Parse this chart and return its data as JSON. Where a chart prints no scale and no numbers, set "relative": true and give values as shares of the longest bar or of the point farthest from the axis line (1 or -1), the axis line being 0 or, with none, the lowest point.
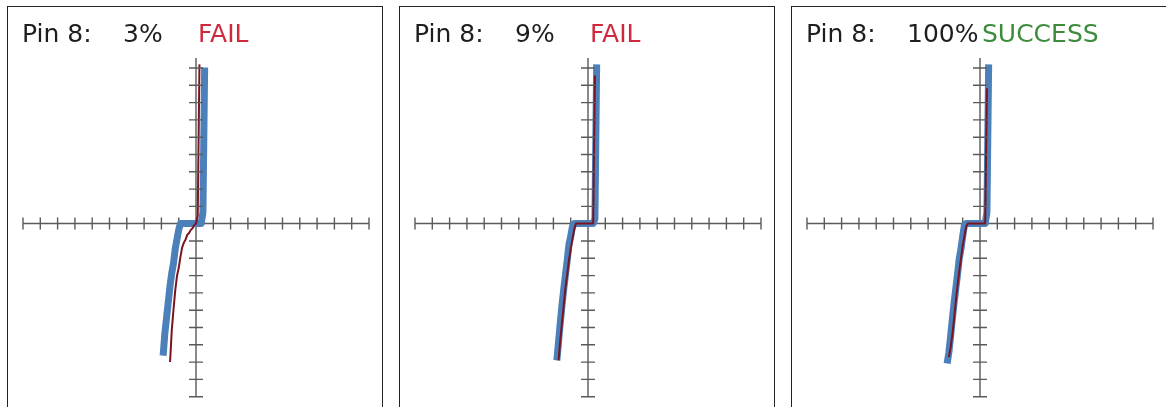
{
  "chart_data": [
    {
      "type": "line",
      "title": "Pin 8:",
      "subtitle": "3%",
      "annotations": [
        "FAIL"
      ],
      "relative": true,
      "categories": [
        null,
        null,
        null,
        null,
        null,
        null,
        null,
        null,
        null,
        null,
        null,
        null,
        null,
        null,
        null,
        null,
        null,
        null,
        null,
        null,
        null,
        null,
        null,
        null,
        null,
        null,
        null,
        null,
        null,
        null,
        null,
        null,
        null,
        null,
        null,
        null,
        null,
        null,
        null,
        null,
        null,
        null,
        null,
        null,
        null,
        null,
        null,
        null,
        null,
        null,
        null,
        null,
        null,
        null,
        null,
        null,
        null,
        null,
        null,
        null,
        null,
        null,
        null,
        null,
        null,
        null,
        null,
        null,
        null,
        null,
        null,
        null,
        null,
        null,
        null,
        null,
        null,
        null,
        null,
        null,
        null,
        null,
        null,
        null,
        null,
        null,
        null,
        null,
        null,
        null,
        null,
        null,
        null,
        null,
        null,
        null,
        null,
        null,
        null,
        null,
        null,
        null,
        null,
        null,
        null,
        null,
        null,
        null,
        null,
        null,
        null,
        null,
        null,
        null,
        null,
        null,
        null,
        null,
        null,
        null,
        null,
        null,
        null,
        null,
        null,
        null,
        null,
        null,
        null,
        null,
        null,
        null,
        null,
        null,
        null,
        null,
        null,
        null,
        null,
        null,
        null,
        null,
        null,
        null,
        null,
        null,
        null,
        null,
        null,
        null,
        null,
        null,
        null,
        null,
        null,
        null,
        null,
        null,
        null,
        null,
        null,
        null,
        null,
        null,
        null,
        null,
        null,
        null,
        null,
        null,
        null,
        null,
        null,
        null,
        null,
        null,
        null,
        null,
        null,
        null,
        null,
        null,
        null,
        null,
        null,
        null,
        null,
        null,
        null,
        null,
        null,
        null,
        null,
        null,
        null,
        null,
        null,
        null,
        null,
        null,
        null
      ],
      "series": [
        {
          "color": "#4c80ba",
          "values": [
            null,
            null,
            null,
            null,
            null,
            null,
            null,
            null,
            null,
            null,
            null,
            null,
            null,
            null,
            null,
            null,
            null,
            null,
            null,
            null,
            null,
            null,
            null,
            null,
            null,
            null,
            null,
            null,
            null,
            null,
            null,
            null,
            null,
            null,
            null,
            null,
            null,
            null,
            null,
            null,
            null,
            null,
            null,
            null,
            null,
            null,
            null,
            null,
            null,
            null,
            null,
            null,
            null,
            null,
            null,
            null,
            null,
            null,
            null,
            null,
            null,
            null,
            null,
            null,
            null,
            null,
            null,
            null,
            null,
            null,
            null,
            null,
            null,
            null,
            null,
            null,
            null,
            null,
            null,
            null,
            null,
            -0.83,
            -0.69,
            -0.59,
            -0.49,
            -0.39,
            -0.31,
            -0.25,
            -0.16,
            -0.1,
            -0.04,
            0,
            0,
            0,
            0,
            0,
            0,
            0,
            0,
            0,
            0,
            0,
            0,
            0,
            0.07,
            0.98,
            null,
            null,
            null,
            null,
            null,
            null,
            null,
            null,
            null,
            null,
            null,
            null,
            null,
            null,
            null,
            null,
            null,
            null,
            null,
            null,
            null,
            null,
            null,
            null,
            null,
            null,
            null,
            null,
            null,
            null,
            null,
            null,
            null,
            null,
            null,
            null,
            null,
            null,
            null,
            null,
            null,
            null,
            null,
            null,
            null,
            null,
            null,
            null,
            null,
            null,
            null,
            null,
            null,
            null,
            null,
            null,
            null,
            null,
            null,
            null,
            null,
            null,
            null,
            null,
            null,
            null,
            null,
            null,
            null,
            null,
            null,
            null,
            null,
            null,
            null,
            null,
            null,
            null,
            null,
            null,
            null,
            null,
            null,
            null,
            null,
            null,
            null,
            null,
            null,
            null,
            null,
            null,
            null,
            null,
            null
          ]
        },
        {
          "color": "#7a1420",
          "values": [
            null,
            null,
            null,
            null,
            null,
            null,
            null,
            null,
            null,
            null,
            null,
            null,
            null,
            null,
            null,
            null,
            null,
            null,
            null,
            null,
            null,
            null,
            null,
            null,
            null,
            null,
            null,
            null,
            null,
            null,
            null,
            null,
            null,
            null,
            null,
            null,
            null,
            null,
            null,
            null,
            null,
            null,
            null,
            null,
            null,
            null,
            null,
            null,
            null,
            null,
            null,
            null,
            null,
            null,
            null,
            null,
            null,
            null,
            null,
            null,
            null,
            null,
            null,
            null,
            null,
            null,
            null,
            null,
            null,
            null,
            null,
            null,
            null,
            null,
            null,
            null,
            null,
            null,
            null,
            null,
            null,
            null,
            null,
            null,
            null,
            -0.87,
            -0.67,
            -0.54,
            -0.42,
            -0.33,
            -0.28,
            -0.21,
            -0.15,
            -0.12,
            -0.1,
            -0.07,
            -0.06,
            -0.04,
            -0.03,
            -0.01,
            0,
            0.05,
            1,
            null,
            null,
            null,
            null,
            null,
            null,
            null,
            null,
            null,
            null,
            null,
            null,
            null,
            null,
            null,
            null,
            null,
            null,
            null,
            null,
            null,
            null,
            null,
            null,
            null,
            null,
            null,
            null,
            null,
            null,
            null,
            null,
            null,
            null,
            null,
            null,
            null,
            null,
            null,
            null,
            null,
            null,
            null,
            null,
            null,
            null,
            null,
            null,
            null,
            null,
            null,
            null,
            null,
            null,
            null,
            null,
            null,
            null,
            null,
            null,
            null,
            null,
            null,
            null,
            null,
            null,
            null,
            null,
            null,
            null,
            null,
            null,
            null,
            null,
            null,
            null,
            null,
            null,
            null,
            null,
            null,
            null,
            null,
            null,
            null,
            null,
            null,
            null,
            null,
            null,
            null,
            null,
            null,
            null,
            null,
            null,
            null,
            null
          ]
        }
      ]
    },
    {
      "type": "line",
      "title": "Pin 8:",
      "subtitle": "9%",
      "annotations": [
        "FAIL"
      ],
      "relative": true,
      "categories": [
        null,
        null,
        null,
        null,
        null,
        null,
        null,
        null,
        null,
        null,
        null,
        null,
        null,
        null,
        null,
        null,
        null,
        null,
        null,
        null,
        null,
        null,
        null,
        null,
        null,
        null,
        null,
        null,
        null,
        null,
        null,
        null,
        null,
        null,
        null,
        null,
        null,
        null,
        null,
        null,
        null,
        null,
        null,
        null,
        null,
        null,
        null,
        null,
        null,
        null,
        null,
        null,
        null,
        null,
        null,
        null,
        null,
        null,
        null,
        null,
        null,
        null,
        null,
        null,
        null,
        null,
        null,
        null,
        null,
        null,
        null,
        null,
        null,
        null,
        null,
        null,
        null,
        null,
        null,
        null,
        null,
        null,
        null,
        null,
        null,
        null,
        null,
        null,
        null,
        null,
        null,
        null,
        null,
        null,
        null,
        null,
        null,
        null,
        null,
        null,
        null,
        null,
        null,
        null,
        null,
        null,
        null,
        null,
        null,
        null,
        null,
        null,
        null,
        null,
        null,
        null,
        null,
        null,
        null,
        null,
        null,
        null,
        null,
        null,
        null,
        null,
        null,
        null,
        null,
        null,
        null,
        null,
        null,
        null,
        null,
        null,
        null,
        null,
        null,
        null,
        null,
        null,
        null,
        null,
        null,
        null,
        null,
        null,
        null,
        null,
        null,
        null,
        null,
        null,
        null,
        null,
        null,
        null,
        null,
        null,
        null,
        null,
        null,
        null,
        null,
        null,
        null,
        null,
        null,
        null,
        null,
        null,
        null,
        null,
        null,
        null,
        null,
        null,
        null,
        null,
        null,
        null,
        null,
        null,
        null,
        null,
        null,
        null,
        null,
        null,
        null,
        null,
        null,
        null,
        null,
        null,
        null,
        null,
        null,
        null,
        null
      ],
      "series": [
        {
          "color": "#4c80ba",
          "values": [
            null,
            null,
            null,
            null,
            null,
            null,
            null,
            null,
            null,
            null,
            null,
            null,
            null,
            null,
            null,
            null,
            null,
            null,
            null,
            null,
            null,
            null,
            null,
            null,
            null,
            null,
            null,
            null,
            null,
            null,
            null,
            null,
            null,
            null,
            null,
            null,
            null,
            null,
            null,
            null,
            null,
            null,
            null,
            null,
            null,
            null,
            null,
            null,
            null,
            null,
            null,
            null,
            null,
            null,
            null,
            null,
            null,
            null,
            null,
            null,
            null,
            null,
            null,
            null,
            null,
            null,
            null,
            null,
            null,
            null,
            null,
            null,
            null,
            null,
            null,
            null,
            null,
            null,
            null,
            null,
            null,
            null,
            -0.86,
            -0.74,
            -0.62,
            -0.51,
            -0.41,
            -0.32,
            -0.23,
            -0.13,
            -0.08,
            -0.02,
            0,
            0,
            0,
            0,
            0,
            0,
            0,
            0,
            0,
            0,
            0,
            0,
            0.03,
            1,
            null,
            null,
            null,
            null,
            null,
            null,
            null,
            null,
            null,
            null,
            null,
            null,
            null,
            null,
            null,
            null,
            null,
            null,
            null,
            null,
            null,
            null,
            null,
            null,
            null,
            null,
            null,
            null,
            null,
            null,
            null,
            null,
            null,
            null,
            null,
            null,
            null,
            null,
            null,
            null,
            null,
            null,
            null,
            null,
            null,
            null,
            null,
            null,
            null,
            null,
            null,
            null,
            null,
            null,
            null,
            null,
            null,
            null,
            null,
            null,
            null,
            null,
            null,
            null,
            null,
            null,
            null,
            null,
            null,
            null,
            null,
            null,
            null,
            null,
            null,
            null,
            null,
            null,
            null,
            null,
            null,
            null,
            null,
            null,
            null,
            null,
            null,
            null,
            null,
            null,
            null,
            null,
            null,
            null,
            null
          ]
        },
        {
          "color": "#7a1420",
          "values": [
            null,
            null,
            null,
            null,
            null,
            null,
            null,
            null,
            null,
            null,
            null,
            null,
            null,
            null,
            null,
            null,
            null,
            null,
            null,
            null,
            null,
            null,
            null,
            null,
            null,
            null,
            null,
            null,
            null,
            null,
            null,
            null,
            null,
            null,
            null,
            null,
            null,
            null,
            null,
            null,
            null,
            null,
            null,
            null,
            null,
            null,
            null,
            null,
            null,
            null,
            null,
            null,
            null,
            null,
            null,
            null,
            null,
            null,
            null,
            null,
            null,
            null,
            null,
            null,
            null,
            null,
            null,
            null,
            null,
            null,
            null,
            null,
            null,
            null,
            null,
            null,
            null,
            null,
            null,
            null,
            null,
            null,
            null,
            -0.86,
            -0.73,
            -0.62,
            -0.51,
            -0.4,
            -0.32,
            -0.23,
            -0.16,
            -0.1,
            -0.04,
            0,
            0,
            0,
            0,
            0,
            0,
            0,
            0,
            0,
            0,
            0,
            0.93,
            null,
            null,
            null,
            null,
            null,
            null,
            null,
            null,
            null,
            null,
            null,
            null,
            null,
            null,
            null,
            null,
            null,
            null,
            null,
            null,
            null,
            null,
            null,
            null,
            null,
            null,
            null,
            null,
            null,
            null,
            null,
            null,
            null,
            null,
            null,
            null,
            null,
            null,
            null,
            null,
            null,
            null,
            null,
            null,
            null,
            null,
            null,
            null,
            null,
            null,
            null,
            null,
            null,
            null,
            null,
            null,
            null,
            null,
            null,
            null,
            null,
            null,
            null,
            null,
            null,
            null,
            null,
            null,
            null,
            null,
            null,
            null,
            null,
            null,
            null,
            null,
            null,
            null,
            null,
            null,
            null,
            null,
            null,
            null,
            null,
            null,
            null,
            null,
            null,
            null,
            null,
            null,
            null,
            null,
            null,
            null
          ]
        }
      ]
    },
    {
      "type": "line",
      "title": "Pin 8:",
      "subtitle": "100%",
      "annotations": [
        "SUCCESS"
      ],
      "relative": true,
      "categories": [
        null,
        null,
        null,
        null,
        null,
        null,
        null,
        null,
        null,
        null,
        null,
        null,
        null,
        null,
        null,
        null,
        null,
        null,
        null,
        null,
        null,
        null,
        null,
        null,
        null,
        null,
        null,
        null,
        null,
        null,
        null,
        null,
        null,
        null,
        null,
        null,
        null,
        null,
        null,
        null,
        null,
        null,
        null,
        null,
        null,
        null,
        null,
        null,
        null,
        null,
        null,
        null,
        null,
        null,
        null,
        null,
        null,
        null,
        null,
        null,
        null,
        null,
        null,
        null,
        null,
        null,
        null,
        null,
        null,
        null,
        null,
        null,
        null,
        null,
        null,
        null,
        null,
        null,
        null,
        null,
        null,
        null,
        null,
        null,
        null,
        null,
        null,
        null,
        null,
        null,
        null,
        null,
        null,
        null,
        null,
        null,
        null,
        null,
        null,
        null,
        null,
        null,
        null,
        null,
        null,
        null,
        null,
        null,
        null,
        null,
        null,
        null,
        null,
        null,
        null,
        null,
        null,
        null,
        null,
        null,
        null,
        null,
        null,
        null,
        null,
        null,
        null,
        null,
        null,
        null,
        null,
        null,
        null,
        null,
        null,
        null,
        null,
        null,
        null,
        null,
        null,
        null,
        null,
        null,
        null,
        null,
        null,
        null,
        null,
        null,
        null,
        null,
        null,
        null,
        null,
        null,
        null,
        null,
        null,
        null,
        null,
        null,
        null,
        null,
        null,
        null,
        null,
        null,
        null,
        null,
        null,
        null,
        null,
        null,
        null,
        null,
        null,
        null,
        null,
        null,
        null,
        null,
        null,
        null,
        null,
        null,
        null,
        null,
        null,
        null,
        null,
        null,
        null,
        null,
        null,
        null,
        null,
        null,
        null,
        null,
        null
      ],
      "series": [
        {
          "color": "#4c80ba",
          "values": [
            null,
            null,
            null,
            null,
            null,
            null,
            null,
            null,
            null,
            null,
            null,
            null,
            null,
            null,
            null,
            null,
            null,
            null,
            null,
            null,
            null,
            null,
            null,
            null,
            null,
            null,
            null,
            null,
            null,
            null,
            null,
            null,
            null,
            null,
            null,
            null,
            null,
            null,
            null,
            null,
            null,
            null,
            null,
            null,
            null,
            null,
            null,
            null,
            null,
            null,
            null,
            null,
            null,
            null,
            null,
            null,
            null,
            null,
            null,
            null,
            null,
            null,
            null,
            null,
            null,
            null,
            null,
            null,
            null,
            null,
            null,
            null,
            null,
            null,
            null,
            null,
            null,
            null,
            null,
            null,
            null,
            -0.88,
            -0.81,
            -0.71,
            -0.6,
            -0.5,
            -0.41,
            -0.32,
            -0.22,
            -0.16,
            -0.08,
            -0.01,
            0,
            0,
            0,
            0,
            0,
            0,
            0,
            0,
            0,
            0,
            0,
            0,
            0.07,
            1,
            null,
            null,
            null,
            null,
            null,
            null,
            null,
            null,
            null,
            null,
            null,
            null,
            null,
            null,
            null,
            null,
            null,
            null,
            null,
            null,
            null,
            null,
            null,
            null,
            null,
            null,
            null,
            null,
            null,
            null,
            null,
            null,
            null,
            null,
            null,
            null,
            null,
            null,
            null,
            null,
            null,
            null,
            null,
            null,
            null,
            null,
            null,
            null,
            null,
            null,
            null,
            null,
            null,
            null,
            null,
            null,
            null,
            null,
            null,
            null,
            null,
            null,
            null,
            null,
            null,
            null,
            null,
            null,
            null,
            null,
            null,
            null,
            null,
            null,
            null,
            null,
            null,
            null,
            null,
            null,
            null,
            null,
            null,
            null,
            null,
            null,
            null,
            null,
            null,
            null,
            null,
            null,
            null,
            null,
            null
          ]
        },
        {
          "color": "#7a1420",
          "values": [
            null,
            null,
            null,
            null,
            null,
            null,
            null,
            null,
            null,
            null,
            null,
            null,
            null,
            null,
            null,
            null,
            null,
            null,
            null,
            null,
            null,
            null,
            null,
            null,
            null,
            null,
            null,
            null,
            null,
            null,
            null,
            null,
            null,
            null,
            null,
            null,
            null,
            null,
            null,
            null,
            null,
            null,
            null,
            null,
            null,
            null,
            null,
            null,
            null,
            null,
            null,
            null,
            null,
            null,
            null,
            null,
            null,
            null,
            null,
            null,
            null,
            null,
            null,
            null,
            null,
            null,
            null,
            null,
            null,
            null,
            null,
            null,
            null,
            null,
            null,
            null,
            null,
            null,
            null,
            null,
            null,
            null,
            -0.84,
            -0.78,
            -0.7,
            -0.6,
            -0.49,
            -0.39,
            -0.3,
            -0.22,
            -0.14,
            -0.08,
            -0.02,
            0,
            0,
            0,
            0,
            0,
            0,
            0,
            0,
            0,
            0,
            0,
            0.85,
            null,
            null,
            null,
            null,
            null,
            null,
            null,
            null,
            null,
            null,
            null,
            null,
            null,
            null,
            null,
            null,
            null,
            null,
            null,
            null,
            null,
            null,
            null,
            null,
            null,
            null,
            null,
            null,
            null,
            null,
            null,
            null,
            null,
            null,
            null,
            null,
            null,
            null,
            null,
            null,
            null,
            null,
            null,
            null,
            null,
            null,
            null,
            null,
            null,
            null,
            null,
            null,
            null,
            null,
            null,
            null,
            null,
            null,
            null,
            null,
            null,
            null,
            null,
            null,
            null,
            null,
            null,
            null,
            null,
            null,
            null,
            null,
            null,
            null,
            null,
            null,
            null,
            null,
            null,
            null,
            null,
            null,
            null,
            null,
            null,
            null,
            null,
            null,
            null,
            null,
            null,
            null,
            null,
            null,
            null,
            null
          ]
        }
      ]
    }
  ]
}
